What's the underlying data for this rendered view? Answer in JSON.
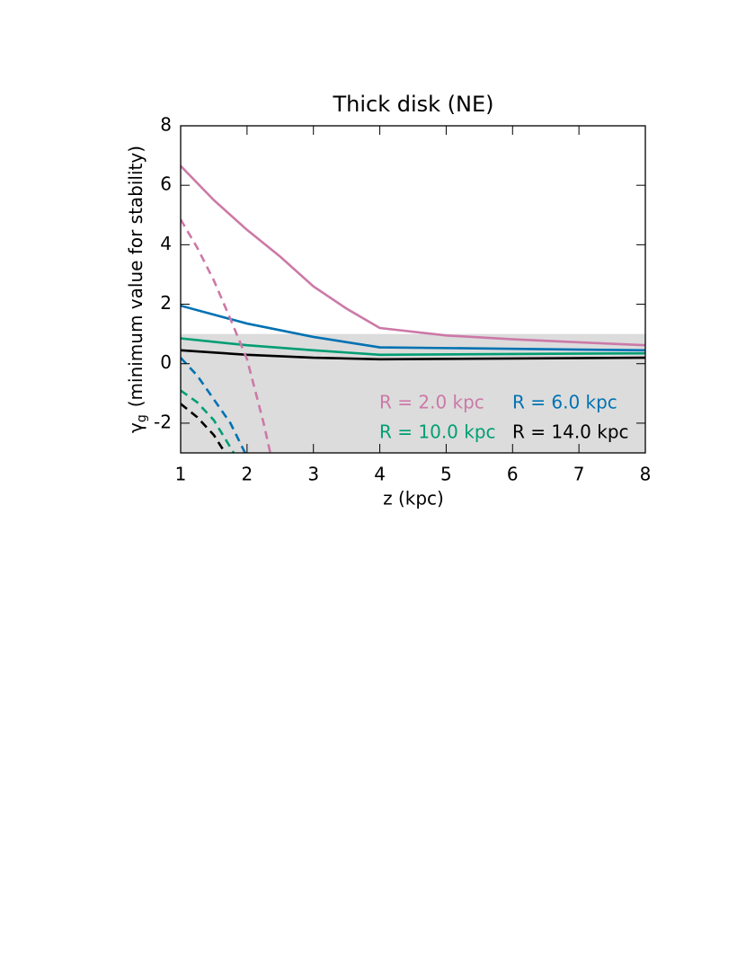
{
  "chart_data": {
    "type": "line",
    "title": "Thick disk (NE)",
    "xlabel": "z (kpc)",
    "ylabel": {
      "symbol": "γ",
      "subscript": "g",
      "text": "(minimum value for stability)"
    },
    "xlim": [
      1,
      8
    ],
    "xticks": [
      1,
      2,
      3,
      4,
      5,
      6,
      7,
      8
    ],
    "ylim": [
      -3,
      8
    ],
    "yticks": [
      -2,
      0,
      2,
      4,
      6,
      8
    ],
    "shaded_band": {
      "ylim": [
        -3,
        1
      ],
      "color": "#dcdcdc"
    },
    "series": [
      {
        "name": "R = 2.0 kpc",
        "color": "#cc79a7",
        "x": [
          1,
          1.5,
          2,
          2.5,
          3,
          3.5,
          4,
          5,
          6,
          7,
          8
        ],
        "values": [
          6.65,
          5.5,
          4.5,
          3.6,
          2.6,
          1.85,
          1.2,
          0.95,
          0.82,
          0.72,
          0.62
        ]
      },
      {
        "name": "R = 6.0 kpc",
        "color": "#0072b2",
        "x": [
          1,
          2,
          3,
          4,
          8
        ],
        "values": [
          1.95,
          1.35,
          0.9,
          0.55,
          0.45
        ]
      },
      {
        "name": "R = 10.0 kpc",
        "color": "#009e73",
        "x": [
          1,
          2,
          3,
          4,
          8
        ],
        "values": [
          0.85,
          0.62,
          0.45,
          0.3,
          0.35
        ]
      },
      {
        "name": "R = 14.0 kpc",
        "color": "#000000",
        "x": [
          1,
          2,
          3,
          4,
          8
        ],
        "values": [
          0.45,
          0.3,
          0.2,
          0.15,
          0.2
        ]
      },
      {
        "color": "#cc79a7",
        "dashed": true,
        "x": [
          1,
          1.25,
          1.5,
          1.75,
          2,
          2.25,
          2.35
        ],
        "values": [
          4.85,
          3.9,
          2.8,
          1.5,
          0.15,
          -2.0,
          -3.0
        ]
      },
      {
        "color": "#0072b2",
        "dashed": true,
        "x": [
          1,
          1.25,
          1.5,
          1.75,
          1.97
        ],
        "values": [
          0.2,
          -0.4,
          -1.2,
          -2.0,
          -3.0
        ]
      },
      {
        "color": "#009e73",
        "dashed": true,
        "x": [
          1,
          1.25,
          1.5,
          1.8
        ],
        "values": [
          -0.9,
          -1.3,
          -1.9,
          -3.0
        ]
      },
      {
        "color": "#000000",
        "dashed": true,
        "x": [
          1,
          1.25,
          1.5,
          1.67
        ],
        "values": [
          -1.35,
          -1.8,
          -2.4,
          -3.0
        ]
      }
    ]
  }
}
